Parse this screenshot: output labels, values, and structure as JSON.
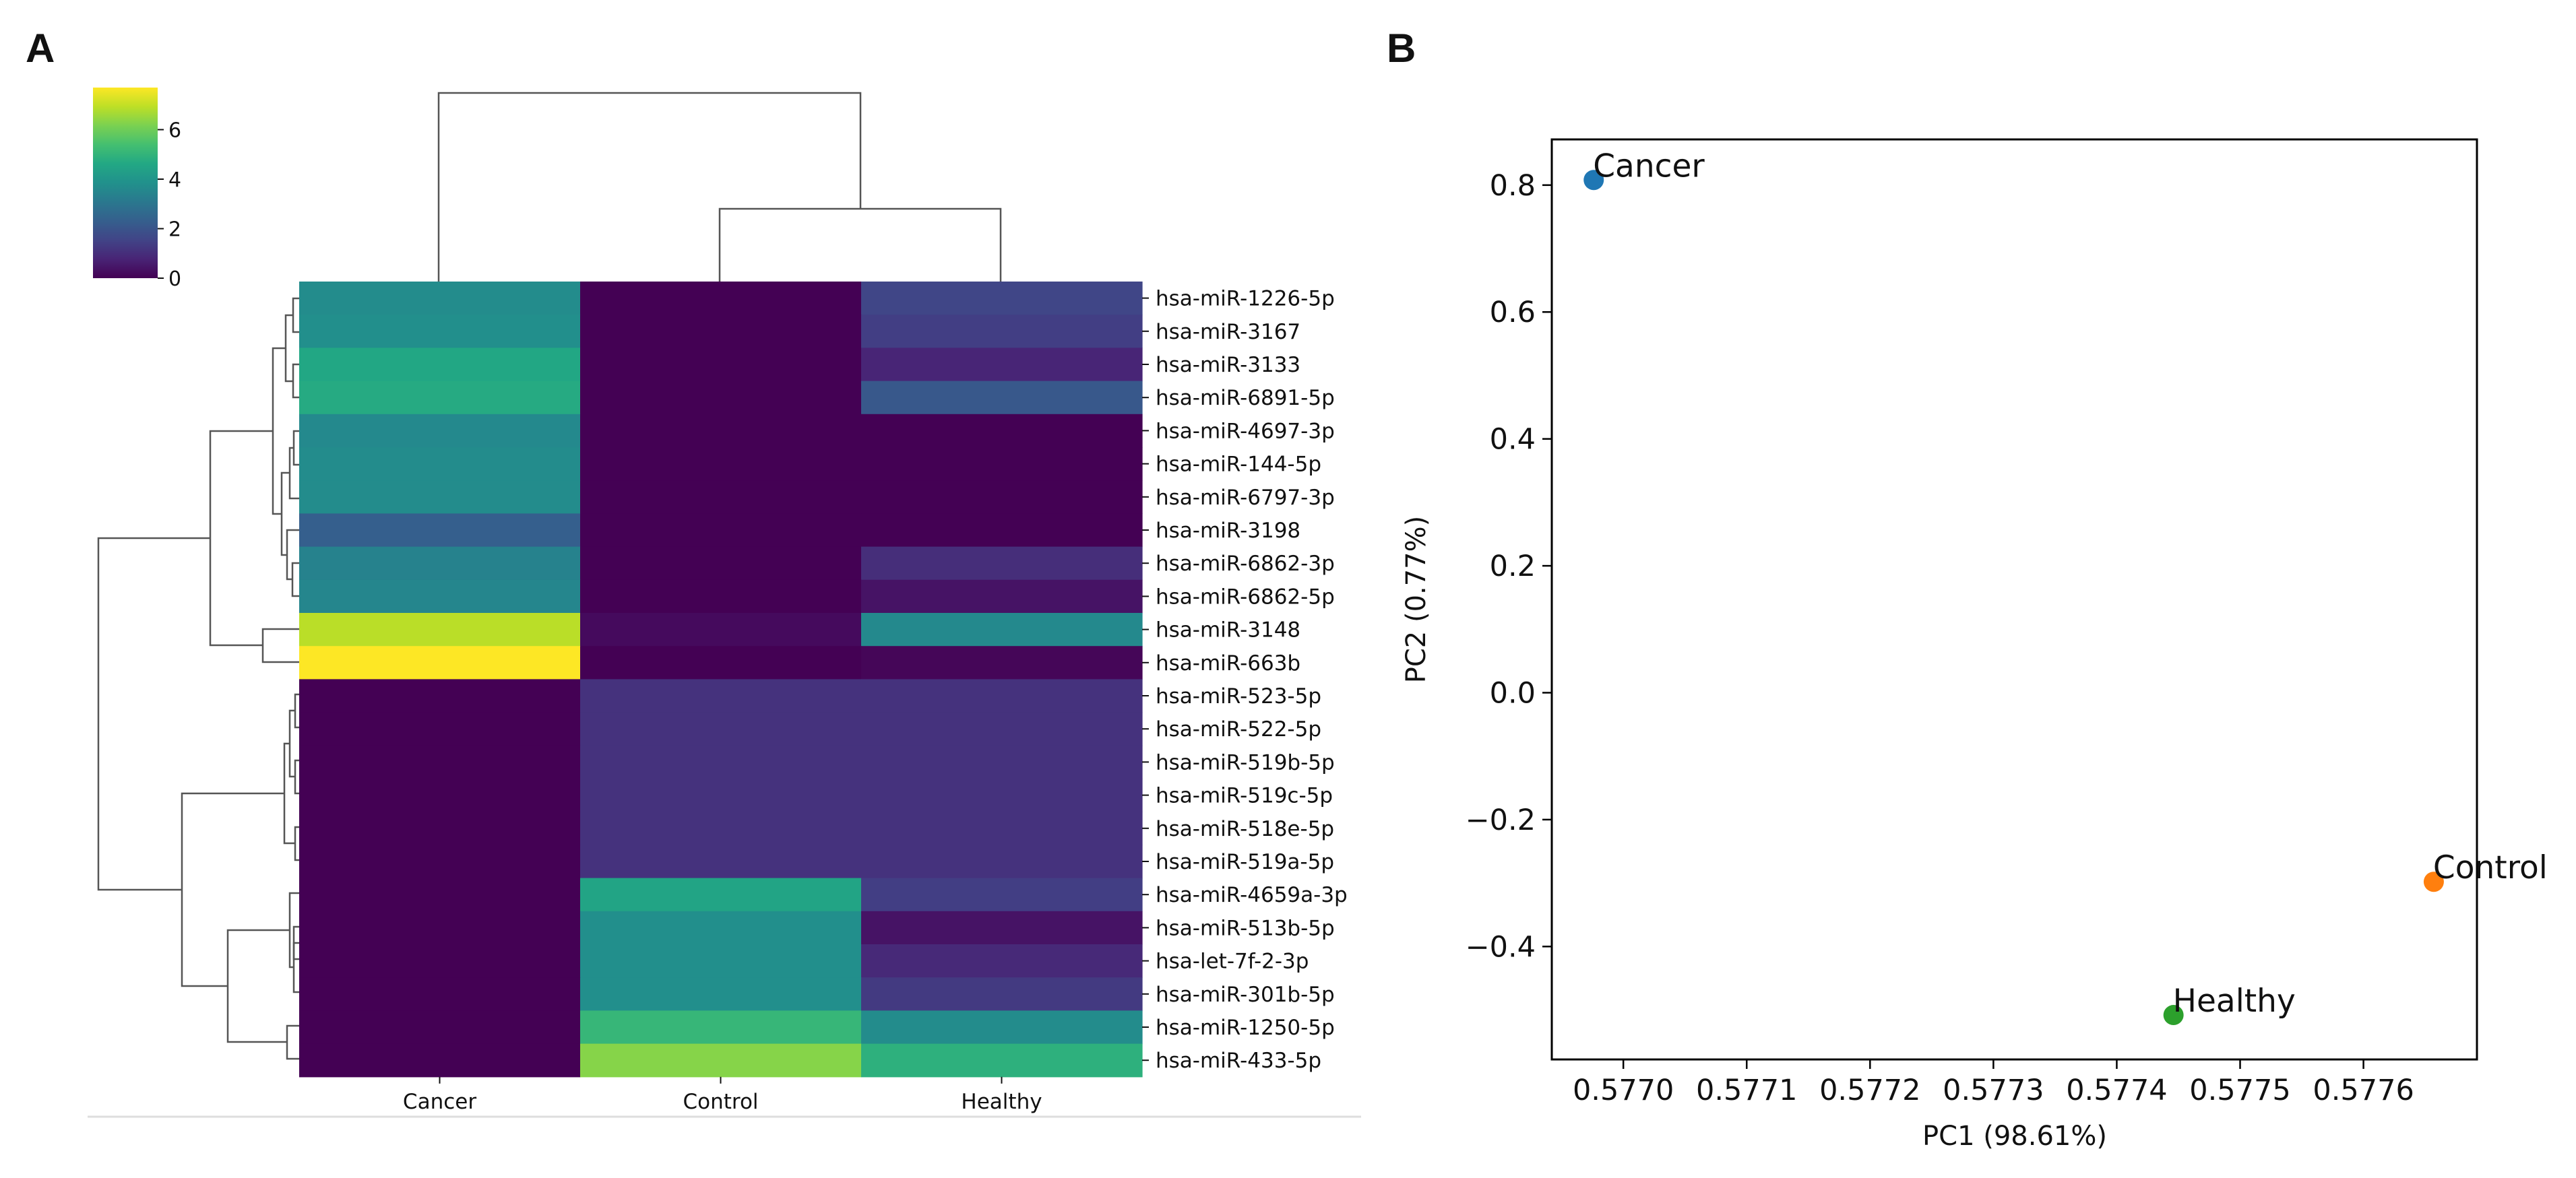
{
  "panels": {
    "a_label": "A",
    "b_label": "B"
  },
  "chart_data": [
    {
      "type": "heatmap",
      "panel": "A",
      "title": "",
      "columns": [
        "Cancer",
        "Control",
        "Healthy"
      ],
      "rows": [
        "hsa-miR-1226-5p",
        "hsa-miR-3167",
        "hsa-miR-3133",
        "hsa-miR-6891-5p",
        "hsa-miR-4697-3p",
        "hsa-miR-144-5p",
        "hsa-miR-6797-3p",
        "hsa-miR-3198",
        "hsa-miR-6862-3p",
        "hsa-miR-6862-5p",
        "hsa-miR-3148",
        "hsa-miR-663b",
        "hsa-miR-523-5p",
        "hsa-miR-522-5p",
        "hsa-miR-519b-5p",
        "hsa-miR-519c-5p",
        "hsa-miR-518e-5p",
        "hsa-miR-519a-5p",
        "hsa-miR-4659a-3p",
        "hsa-miR-513b-5p",
        "hsa-let-7f-2-3p",
        "hsa-miR-301b-5p",
        "hsa-miR-1250-5p",
        "hsa-miR-433-5p"
      ],
      "values": [
        [
          3.7,
          0.0,
          1.6
        ],
        [
          3.8,
          0.0,
          1.4
        ],
        [
          4.6,
          0.0,
          0.8
        ],
        [
          4.7,
          0.0,
          2.1
        ],
        [
          3.6,
          0.0,
          0.0
        ],
        [
          3.7,
          0.0,
          0.0
        ],
        [
          3.7,
          0.0,
          0.0
        ],
        [
          2.3,
          0.0,
          0.0
        ],
        [
          3.4,
          0.0,
          1.0
        ],
        [
          3.5,
          0.0,
          0.4
        ],
        [
          6.9,
          0.2,
          3.6
        ],
        [
          7.7,
          0.0,
          0.1
        ],
        [
          0.0,
          1.1,
          1.1
        ],
        [
          0.0,
          1.1,
          1.1
        ],
        [
          0.0,
          1.1,
          1.1
        ],
        [
          0.0,
          1.1,
          1.1
        ],
        [
          0.0,
          1.1,
          1.1
        ],
        [
          0.0,
          1.1,
          1.1
        ],
        [
          0.0,
          4.5,
          1.4
        ],
        [
          0.0,
          3.8,
          0.4
        ],
        [
          0.0,
          3.8,
          0.9
        ],
        [
          0.0,
          3.8,
          1.3
        ],
        [
          0.0,
          5.1,
          3.7
        ],
        [
          0.0,
          6.3,
          4.9
        ]
      ],
      "colorbar": {
        "min": 0,
        "max": 7.7,
        "ticks": [
          "0",
          "2",
          "4",
          "6"
        ]
      },
      "colormap": "viridis"
    },
    {
      "type": "scatter",
      "panel": "B",
      "title": "",
      "xlabel": "PC1 (98.61%)",
      "ylabel": "PC2 (0.77%)",
      "xlim": [
        0.576942,
        0.577692
      ],
      "ylim": [
        -0.578,
        0.872
      ],
      "xticks": [
        {
          "v": 0.577,
          "l": "0.5770"
        },
        {
          "v": 0.5771,
          "l": "0.5771"
        },
        {
          "v": 0.5772,
          "l": "0.5772"
        },
        {
          "v": 0.5773,
          "l": "0.5773"
        },
        {
          "v": 0.5774,
          "l": "0.5774"
        },
        {
          "v": 0.5775,
          "l": "0.5775"
        },
        {
          "v": 0.5776,
          "l": "0.5776"
        }
      ],
      "yticks": [
        {
          "v": 0.8,
          "l": "0.8"
        },
        {
          "v": 0.6,
          "l": "0.6"
        },
        {
          "v": 0.4,
          "l": "0.4"
        },
        {
          "v": 0.2,
          "l": "0.2"
        },
        {
          "v": 0.0,
          "l": "0.0"
        },
        {
          "v": -0.2,
          "l": "−0.2"
        },
        {
          "v": -0.4,
          "l": "−0.4"
        }
      ],
      "points": [
        {
          "label": "Cancer",
          "x": 0.576976,
          "y": 0.808,
          "color": "#1f77b4"
        },
        {
          "label": "Control",
          "x": 0.577657,
          "y": -0.298,
          "color": "#ff7f0e"
        },
        {
          "label": "Healthy",
          "x": 0.577446,
          "y": -0.508,
          "color": "#2ca02c"
        }
      ]
    }
  ]
}
